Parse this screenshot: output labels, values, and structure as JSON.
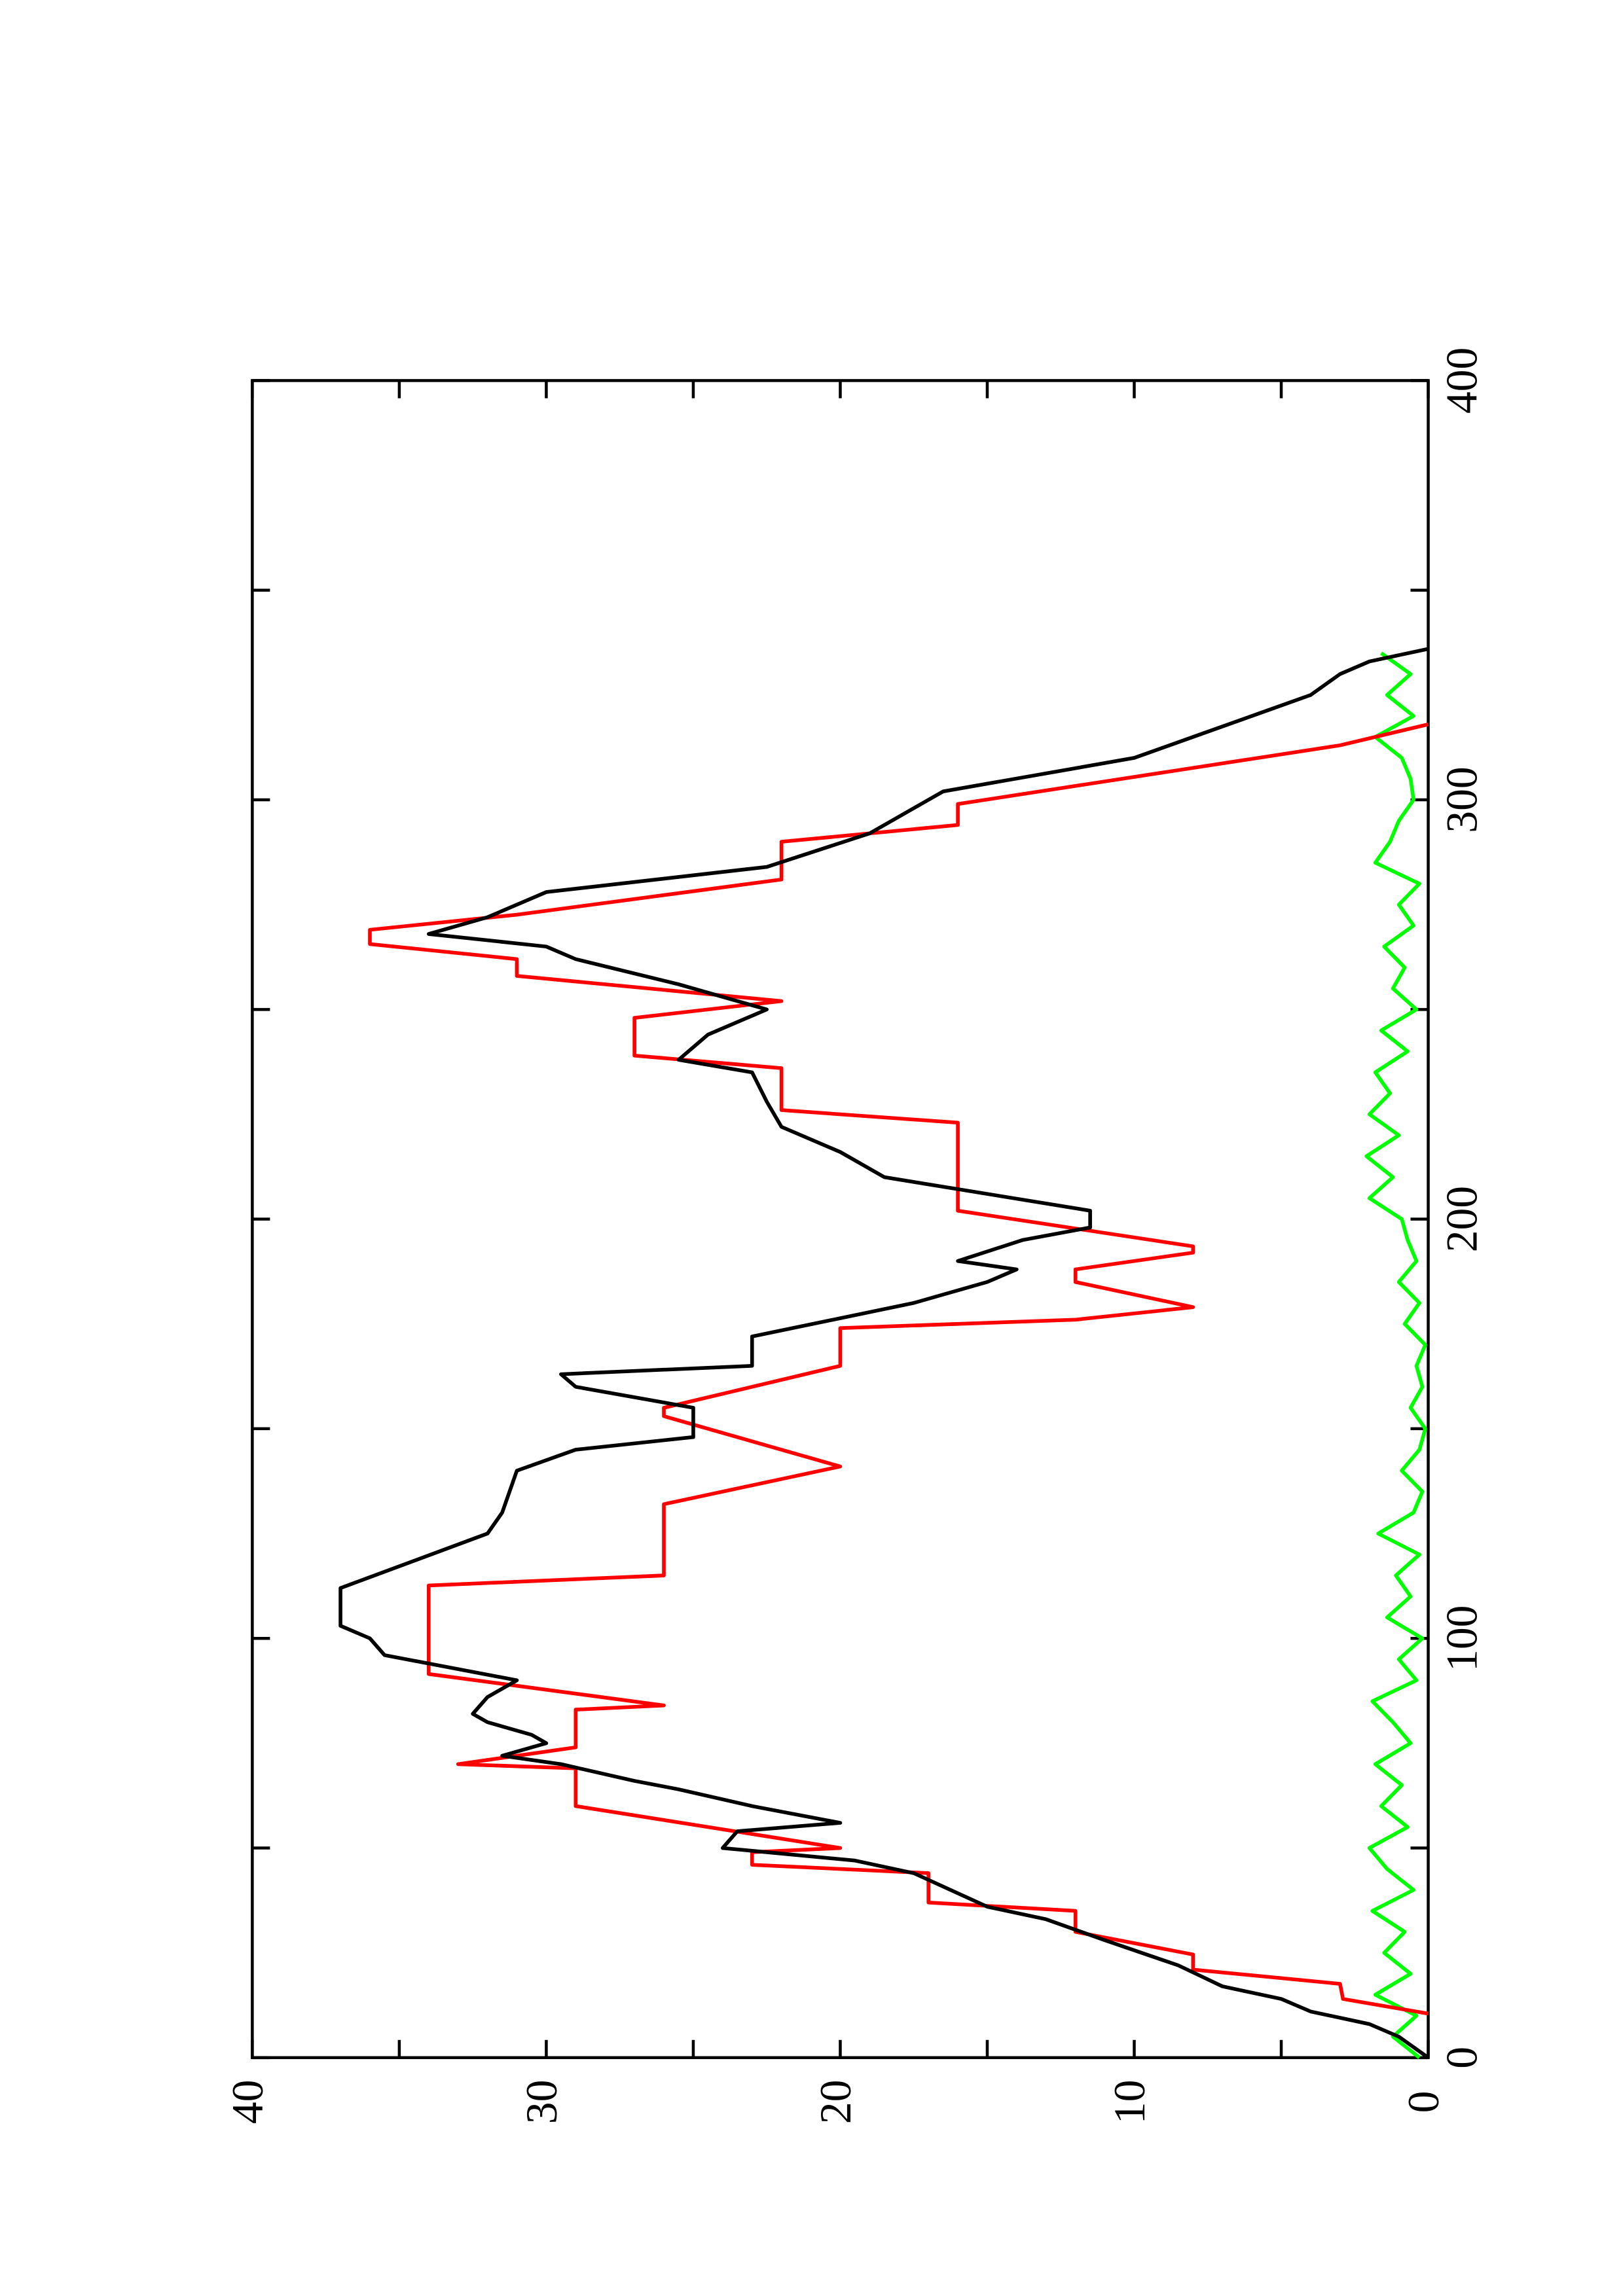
{
  "chart_data": {
    "type": "line",
    "orientation": "rotated",
    "xlim": [
      0,
      400
    ],
    "xticks": [
      0,
      100,
      200,
      300,
      400
    ],
    "xminor_ticks": [
      50,
      150,
      250,
      350
    ],
    "ylim": [
      0,
      40
    ],
    "yticks": [
      0,
      10,
      20,
      30,
      40
    ],
    "yminor_ticks": [
      5,
      15,
      25,
      35
    ],
    "series": [
      {
        "color": "#000000",
        "x": [
          0,
          5,
          8,
          11,
          14,
          17,
          22,
          28,
          33,
          36,
          44,
          47,
          50,
          54,
          56,
          60,
          64,
          66,
          70,
          72,
          75,
          77,
          80,
          82,
          86,
          90,
          96,
          100,
          103,
          112,
          125,
          130,
          140,
          145,
          148,
          155,
          160,
          163,
          165,
          172,
          180,
          185,
          188,
          190,
          195,
          198,
          202,
          210,
          216,
          222,
          228,
          235,
          238,
          244,
          250,
          256,
          262,
          265,
          268,
          272,
          278,
          284,
          292,
          298,
          302,
          310,
          315,
          320,
          325,
          330,
          333,
          336
        ],
        "values": [
          0,
          1,
          2,
          4,
          5,
          7,
          8.5,
          11,
          13,
          15,
          17.5,
          19.5,
          24,
          23.5,
          20,
          23,
          25.5,
          27,
          29.5,
          31.5,
          30,
          30.5,
          32,
          32.5,
          32,
          31,
          35.5,
          36,
          37,
          37,
          32,
          31.5,
          31,
          29,
          25,
          25,
          29,
          29.5,
          23,
          23,
          17.5,
          15,
          14,
          16,
          13.8,
          11.5,
          11.5,
          18.5,
          20,
          22,
          22.5,
          23,
          25.5,
          24.5,
          22.5,
          25.5,
          29,
          30,
          34,
          32,
          30,
          22.5,
          19,
          17.5,
          16.5,
          10,
          8,
          6,
          4,
          3,
          2,
          0
        ]
      },
      {
        "color": "#ff0000",
        "x": [
          10.5,
          14,
          17.6,
          21,
          24.6,
          30,
          35,
          37,
          44,
          46,
          49,
          50,
          60,
          69,
          70,
          74,
          83,
          84,
          91.5,
          112.6,
          115,
          132,
          141,
          153,
          155,
          165,
          174,
          176,
          179,
          185,
          188,
          192,
          193.5,
          202,
          223,
          226,
          236,
          239,
          248,
          252,
          258,
          262,
          265.6,
          269,
          272.6,
          281,
          290,
          294,
          299,
          313,
          318
        ],
        "values": [
          0,
          2.9,
          3,
          8,
          8,
          12,
          12,
          17,
          17,
          23,
          23,
          20,
          29,
          29,
          33,
          29,
          29,
          26,
          34,
          34,
          26,
          26,
          20,
          26,
          26,
          20,
          20,
          12,
          8,
          12,
          12,
          8,
          8,
          16,
          16,
          22,
          22,
          27,
          27,
          22,
          31,
          31,
          36,
          36,
          31,
          22,
          22,
          16,
          16,
          3,
          0
        ]
      },
      {
        "color": "#00ff00",
        "x": [
          0,
          5,
          10,
          15,
          20,
          25,
          30,
          35,
          40,
          45,
          50,
          55,
          60,
          65,
          70,
          75,
          80,
          85,
          90,
          95,
          100,
          105,
          110,
          115,
          120,
          125,
          130,
          135,
          140,
          145,
          150,
          155,
          160,
          165,
          170,
          175,
          180,
          185,
          190,
          195,
          200,
          205,
          210,
          215,
          220,
          225,
          230,
          235,
          240,
          245,
          250,
          255,
          260,
          265,
          270,
          275,
          280,
          285,
          290,
          295,
          300,
          305,
          310,
          315,
          320,
          325,
          330,
          335
        ],
        "values": [
          0.3,
          1.2,
          0.4,
          1.8,
          0.6,
          1.5,
          0.8,
          1.9,
          0.5,
          1.4,
          2.0,
          0.7,
          1.6,
          0.9,
          1.8,
          0.6,
          1.2,
          1.9,
          0.4,
          1.0,
          0.2,
          1.4,
          0.6,
          1.1,
          0.3,
          1.7,
          0.5,
          0.2,
          0.9,
          0.3,
          0.1,
          0.6,
          0.2,
          0.4,
          0.1,
          0.8,
          0.3,
          1.0,
          0.4,
          0.7,
          0.9,
          2.0,
          1.2,
          2.1,
          1.0,
          2.0,
          1.3,
          1.8,
          0.7,
          1.6,
          0.4,
          1.2,
          0.8,
          1.5,
          0.5,
          1.0,
          0.3,
          1.8,
          1.3,
          1.0,
          0.5,
          0.6,
          0.9,
          1.8,
          0.5,
          1.4,
          0.6,
          1.6
        ]
      }
    ]
  }
}
